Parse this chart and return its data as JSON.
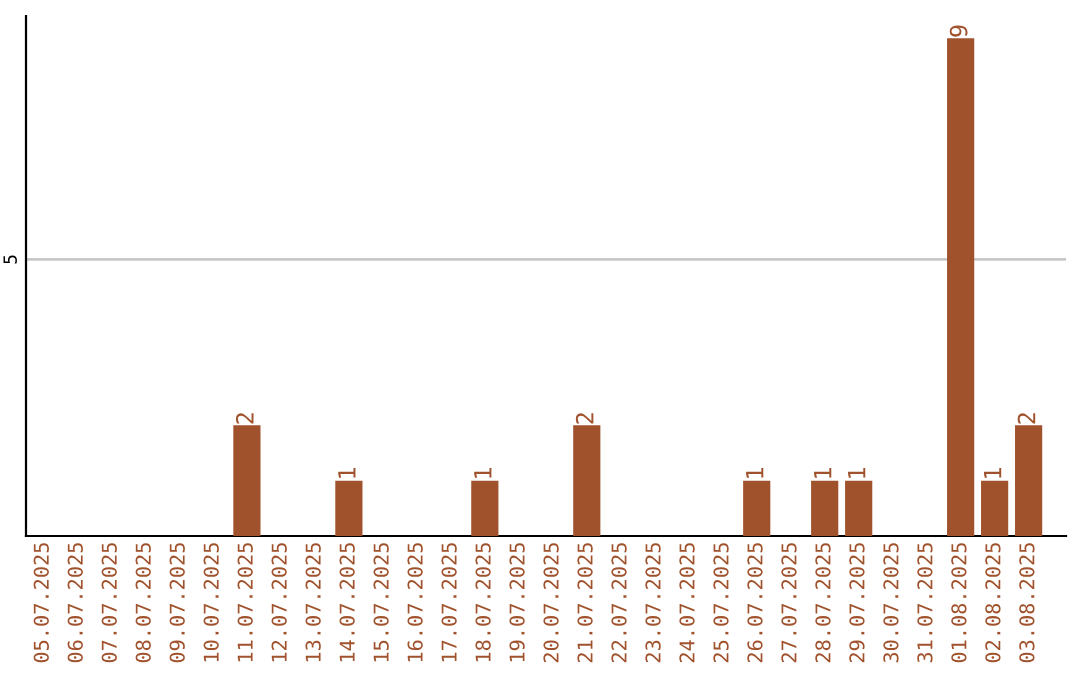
{
  "chart_data": {
    "type": "bar",
    "categories": [
      "05.07.2025",
      "06.07.2025",
      "07.07.2025",
      "08.07.2025",
      "09.07.2025",
      "10.07.2025",
      "11.07.2025",
      "12.07.2025",
      "13.07.2025",
      "14.07.2025",
      "15.07.2025",
      "16.07.2025",
      "17.07.2025",
      "18.07.2025",
      "19.07.2025",
      "20.07.2025",
      "21.07.2025",
      "22.07.2025",
      "23.07.2025",
      "24.07.2025",
      "25.07.2025",
      "26.07.2025",
      "27.07.2025",
      "28.07.2025",
      "29.07.2025",
      "30.07.2025",
      "31.07.2025",
      "01.08.2025",
      "02.08.2025",
      "03.08.2025"
    ],
    "values": [
      0,
      0,
      0,
      0,
      0,
      0,
      2,
      0,
      0,
      1,
      0,
      0,
      0,
      1,
      0,
      0,
      2,
      0,
      0,
      0,
      0,
      1,
      0,
      1,
      1,
      0,
      0,
      9,
      1,
      2
    ],
    "value_labels": [
      null,
      null,
      null,
      null,
      null,
      null,
      "2",
      null,
      null,
      "1",
      null,
      null,
      null,
      "1",
      null,
      null,
      "2",
      null,
      null,
      null,
      null,
      "1",
      null,
      "1",
      "1",
      null,
      null,
      "9",
      "1",
      "2"
    ],
    "color": "#a0522d",
    "ylim": [
      0,
      9.4
    ],
    "yticks": [
      5
    ],
    "grid": "y"
  }
}
